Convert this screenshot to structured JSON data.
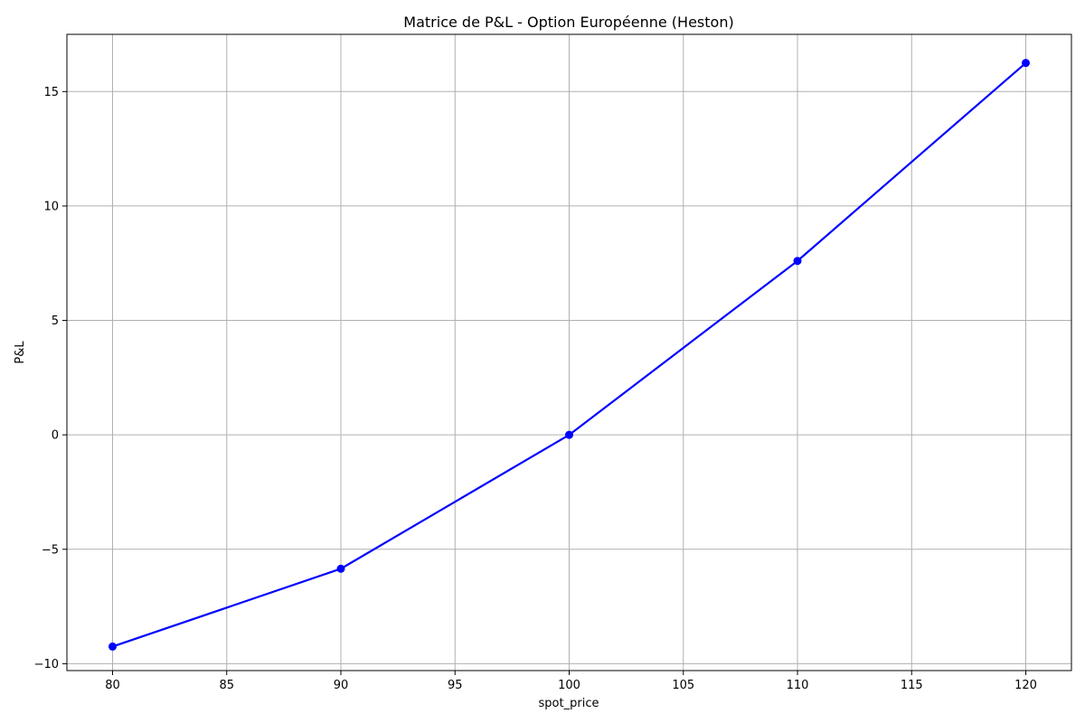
{
  "chart_data": {
    "type": "line",
    "title": "Matrice de P&L - Option Européenne (Heston)",
    "xlabel": "spot_price",
    "ylabel": "P&L",
    "xlim": [
      78,
      122
    ],
    "ylim": [
      -10.3,
      17.5
    ],
    "xticks": [
      80,
      85,
      90,
      95,
      100,
      105,
      110,
      115,
      120
    ],
    "xtick_labels": [
      "80",
      "85",
      "90",
      "95",
      "100",
      "105",
      "110",
      "115",
      "120"
    ],
    "yticks": [
      -10,
      -5,
      0,
      5,
      10,
      15
    ],
    "ytick_labels": [
      "−10",
      "−5",
      "0",
      "5",
      "10",
      "15"
    ],
    "grid": true,
    "series": [
      {
        "x": [
          80,
          90,
          100,
          110,
          120
        ],
        "y": [
          -9.25,
          -5.85,
          0.0,
          7.6,
          16.25
        ],
        "color": "#0000ff",
        "marker": "circle"
      }
    ]
  }
}
